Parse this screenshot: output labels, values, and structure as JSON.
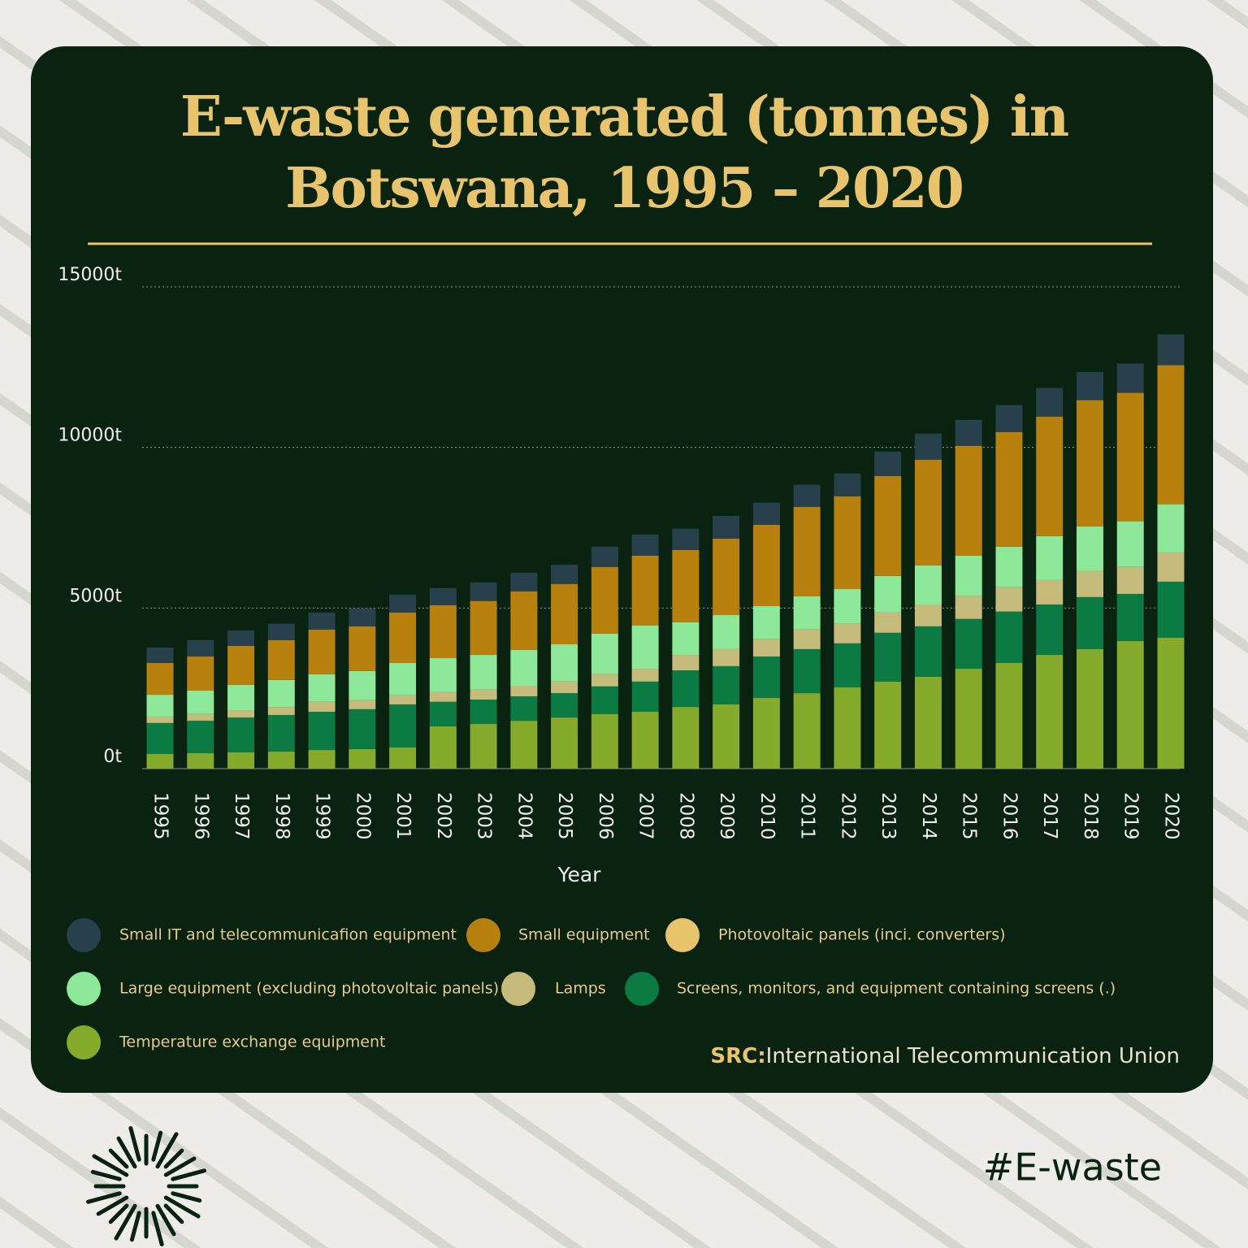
{
  "chart_data": {
    "type": "bar",
    "stacked": true,
    "title": "E-waste generated (tonnes) in\nBotswana, 1995 – 2020",
    "xlabel": "Year",
    "categories": [
      "1995",
      "1996",
      "1997",
      "1998",
      "1999",
      "2000",
      "2001",
      "2002",
      "2003",
      "2004",
      "2005",
      "2006",
      "2007",
      "2008",
      "2009",
      "2010",
      "2011",
      "2012",
      "2013",
      "2014",
      "2015",
      "2016",
      "2017",
      "2018",
      "2019",
      "2020"
    ],
    "series": [
      {
        "name": "Small IT and telecommunicafion equipment",
        "color": "#27404b",
        "values": [
          480,
          510,
          480,
          510,
          530,
          560,
          560,
          530,
          580,
          580,
          600,
          630,
          660,
          660,
          710,
          690,
          690,
          710,
          760,
          810,
          810,
          840,
          890,
          880,
          910,
          960
        ]
      },
      {
        "name": "Small equipment",
        "color": "#b8800c",
        "values": [
          990,
          1060,
          1210,
          1240,
          1390,
          1390,
          1570,
          1650,
          1680,
          1820,
          1880,
          2080,
          2170,
          2250,
          2380,
          2530,
          2780,
          2890,
          3110,
          3290,
          3420,
          3570,
          3720,
          3930,
          4000,
          4330
        ]
      },
      {
        "name": "Photovoltaic panels (inci. converters)",
        "color": "#e8c56c",
        "values": [
          0,
          0,
          0,
          0,
          0,
          0,
          0,
          0,
          0,
          0,
          0,
          0,
          0,
          0,
          0,
          0,
          0,
          0,
          0,
          0,
          0,
          0,
          0,
          0,
          0,
          0
        ]
      },
      {
        "name": "Large equipment (excluding photovoltaic panels)",
        "color": "#8ee89a",
        "values": [
          680,
          730,
          790,
          840,
          860,
          910,
          1010,
          1060,
          1080,
          1120,
          1160,
          1260,
          1350,
          1020,
          1060,
          1030,
          1040,
          1080,
          1140,
          1220,
          1260,
          1260,
          1370,
          1390,
          1420,
          1500
        ]
      },
      {
        "name": "Lamps",
        "color": "#c5bb7b",
        "values": [
          200,
          210,
          230,
          250,
          310,
          280,
          280,
          300,
          310,
          330,
          360,
          380,
          400,
          480,
          530,
          540,
          610,
          610,
          630,
          680,
          710,
          760,
          760,
          810,
          840,
          910
        ]
      },
      {
        "name": "Screens, monitors, and equipment containing screens (.)",
        "color": "#0b7a43",
        "values": [
          960,
          1010,
          1080,
          1140,
          1190,
          1240,
          1340,
          760,
          760,
          760,
          760,
          860,
          940,
          1140,
          1190,
          1290,
          1370,
          1370,
          1520,
          1570,
          1550,
          1600,
          1570,
          1620,
          1470,
          1740
        ]
      },
      {
        "name": "Temperature exchange equipment",
        "color": "#86ab2c",
        "values": [
          460,
          480,
          510,
          530,
          580,
          610,
          660,
          1320,
          1390,
          1490,
          1590,
          1700,
          1770,
          1920,
          2000,
          2200,
          2350,
          2530,
          2710,
          2860,
          3110,
          3290,
          3540,
          3720,
          3970,
          4080
        ]
      }
    ],
    "ylim": [
      0,
      15000
    ],
    "yticks": [
      {
        "value": 0,
        "label": "0t"
      },
      {
        "value": 5000,
        "label": "5000t"
      },
      {
        "value": 10000,
        "label": "10000t"
      },
      {
        "value": 15000,
        "label": "15000t"
      }
    ],
    "grid": true,
    "source_label": "SRC:",
    "source": "International Telecommunication Union"
  },
  "footer": {
    "hashtag": "#E-waste"
  }
}
